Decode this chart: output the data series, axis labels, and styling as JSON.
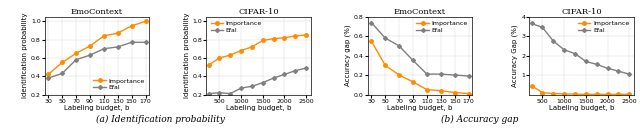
{
  "emo_x": [
    30,
    50,
    70,
    90,
    110,
    130,
    150,
    170
  ],
  "cifar_x": [
    250,
    500,
    750,
    1000,
    1250,
    1500,
    1750,
    2000,
    2250,
    2500
  ],
  "emo_id_importance": [
    0.42,
    0.55,
    0.65,
    0.73,
    0.84,
    0.87,
    0.95,
    1.0
  ],
  "emo_id_efal": [
    0.38,
    0.43,
    0.58,
    0.63,
    0.7,
    0.72,
    0.77,
    0.77
  ],
  "cifar_id_importance": [
    0.52,
    0.6,
    0.63,
    0.68,
    0.72,
    0.79,
    0.81,
    0.82,
    0.84,
    0.85
  ],
  "cifar_id_efal": [
    0.21,
    0.22,
    0.21,
    0.27,
    0.29,
    0.33,
    0.38,
    0.42,
    0.46,
    0.49
  ],
  "emo_acc_importance": [
    0.55,
    0.3,
    0.2,
    0.13,
    0.05,
    0.04,
    0.02,
    0.01
  ],
  "emo_acc_efal": [
    0.74,
    0.58,
    0.5,
    0.35,
    0.21,
    0.21,
    0.2,
    0.19
  ],
  "cifar_acc_importance": [
    0.45,
    0.1,
    0.05,
    0.03,
    0.02,
    0.01,
    0.01,
    0.01,
    0.01,
    0.01
  ],
  "cifar_acc_efal": [
    3.65,
    3.45,
    2.75,
    2.3,
    2.1,
    1.7,
    1.55,
    1.35,
    1.2,
    1.05
  ],
  "color_importance": "#FF8C00",
  "color_efal": "#808080",
  "emo_xlabel": "Labeling budget, b",
  "cifar_xlabel": "Labeling budget, b",
  "id_ylabel": "Identification probability",
  "acc_ylabel_emo": "Accuracy gap (%)",
  "acc_ylabel_cifar": "Accuracy Gap (%)",
  "title_emo": "EmoContext",
  "title_cifar": "CIFAR-10",
  "caption_a": "(a) Identification probability",
  "caption_b": "(b) Accuracy gap",
  "emo_xticks": [
    30,
    50,
    70,
    90,
    110,
    130,
    150,
    170
  ],
  "cifar_xticks": [
    500,
    1000,
    1500,
    2000,
    2500
  ],
  "id_ylim": [
    0.2,
    1.05
  ],
  "id_yticks": [
    0.2,
    0.4,
    0.6,
    0.8,
    1.0
  ],
  "acc_emo_ylim": [
    0.0,
    0.8
  ],
  "acc_emo_yticks": [
    0.0,
    0.2,
    0.4,
    0.6,
    0.8
  ],
  "acc_cifar_ylim": [
    0.0,
    4.0
  ],
  "acc_cifar_yticks": [
    1.0,
    2.0,
    3.0,
    4.0
  ],
  "legend_importance": "Importance",
  "legend_efal": "Efal"
}
